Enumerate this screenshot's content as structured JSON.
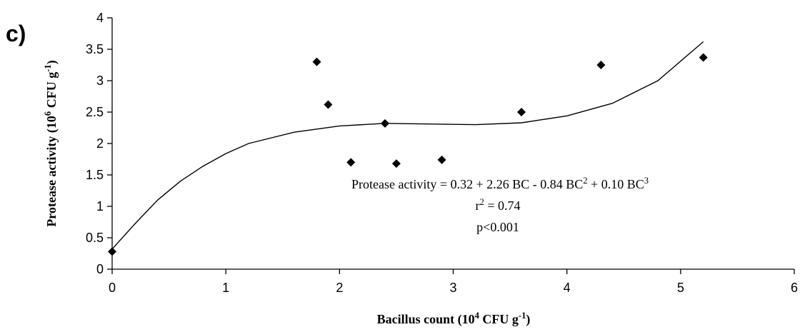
{
  "chart_data": {
    "type": "scatter",
    "panel_label": "c)",
    "x_label": [
      "Bacillus count (10",
      "4",
      " CFU  g",
      "-1",
      ")"
    ],
    "y_label": [
      "Protease activity (10",
      "6",
      " CFU g",
      "-1",
      ")"
    ],
    "annotations": [
      [
        "Protease activity = 0.32 + 2.26  BC  - 0.84  BC",
        "2",
        " + 0.10  BC",
        "3"
      ],
      [
        "r",
        "2",
        " = 0.74"
      ],
      [
        "p<0.001"
      ]
    ],
    "xlim": [
      0,
      6
    ],
    "xticks": [
      0,
      1,
      2,
      3,
      4,
      5,
      6
    ],
    "ylim": [
      0,
      4
    ],
    "yticks": [
      0,
      0.5,
      1,
      1.5,
      2,
      2.5,
      3,
      3.5,
      4
    ],
    "series": [
      {
        "type": "scatter",
        "color": "#000000",
        "x": [
          0,
          1.8,
          1.9,
          2.1,
          2.4,
          2.5,
          2.9,
          3.6,
          4.3,
          5.2
        ],
        "values": [
          0.28,
          3.3,
          2.62,
          1.7,
          2.32,
          1.68,
          1.74,
          2.5,
          3.25,
          3.37
        ]
      },
      {
        "type": "line",
        "color": "#000000",
        "x": [
          0,
          0.2,
          0.4,
          0.6,
          0.8,
          1.0,
          1.2,
          1.6,
          2.0,
          2.4,
          2.8,
          3.2,
          3.6,
          4.0,
          4.4,
          4.8,
          5.2
        ],
        "values": [
          0.32,
          0.72,
          1.1,
          1.4,
          1.64,
          1.84,
          2.0,
          2.18,
          2.28,
          2.32,
          2.31,
          2.3,
          2.33,
          2.44,
          2.64,
          3.0,
          3.62
        ]
      }
    ]
  }
}
